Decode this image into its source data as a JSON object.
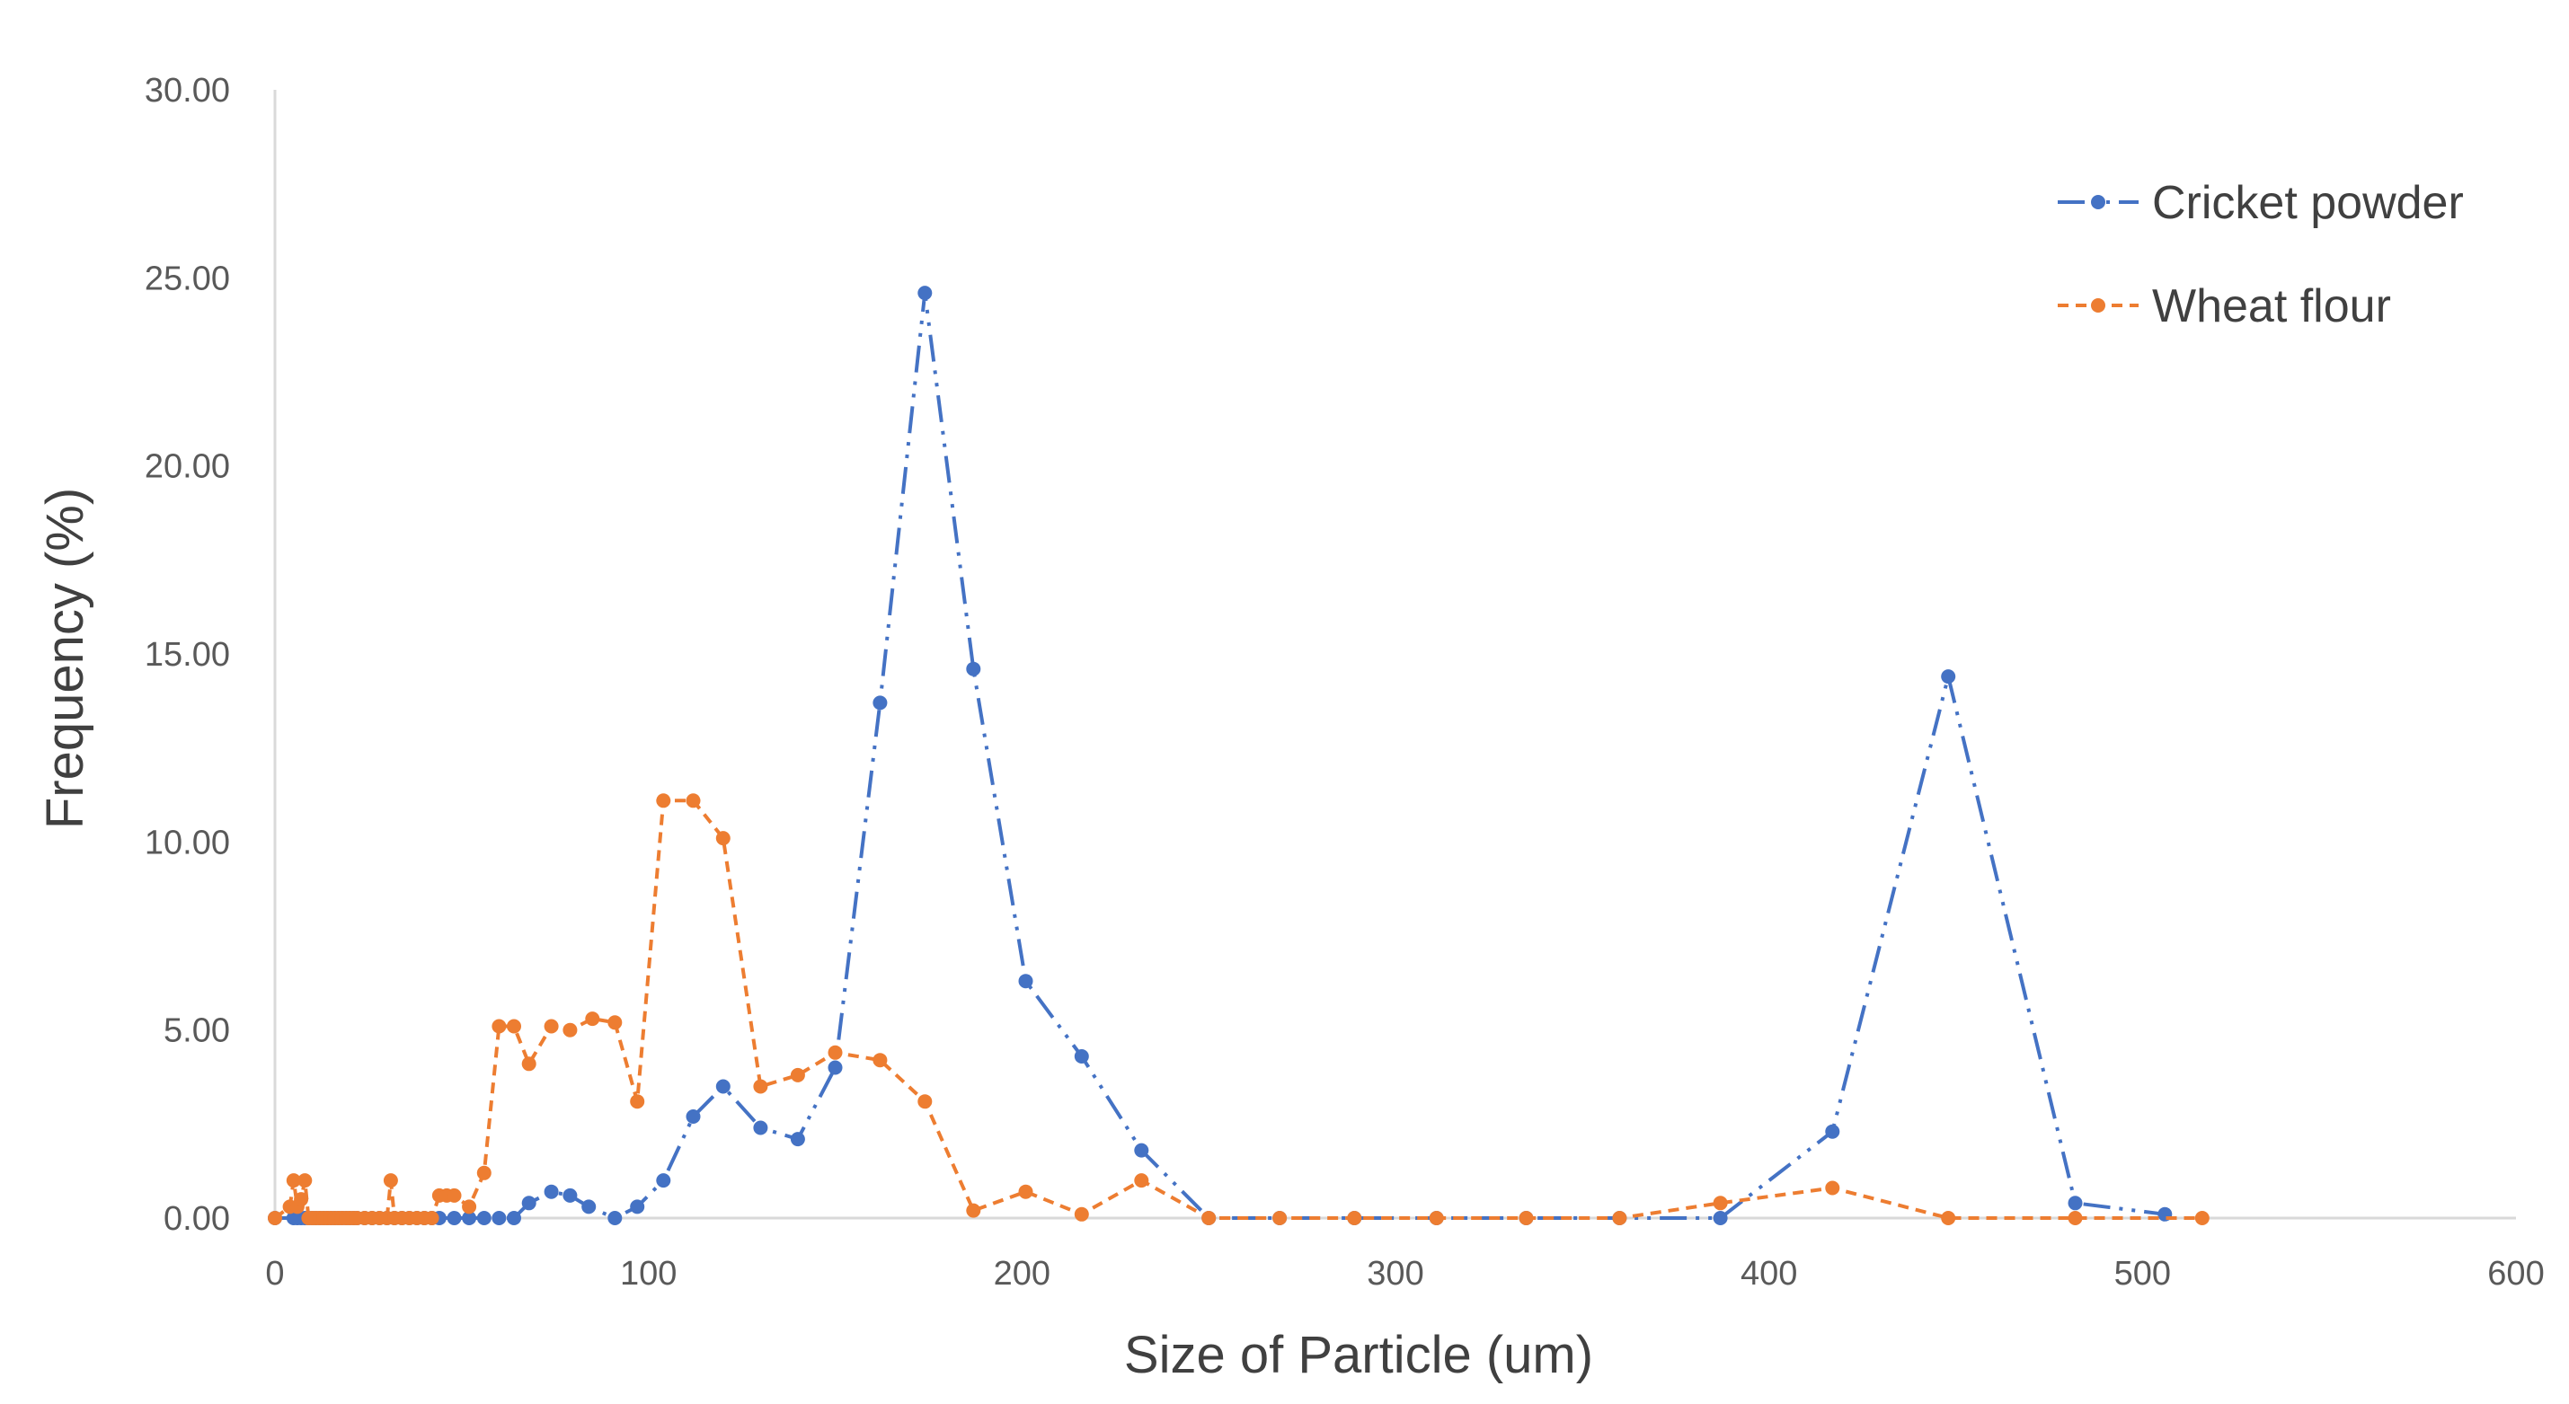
{
  "chart_data": {
    "type": "line",
    "title": "",
    "xlabel": "Size of Particle (um)",
    "ylabel": "Frequency (%)",
    "xlim": [
      0,
      600
    ],
    "ylim": [
      0,
      30
    ],
    "xticks": [
      "0",
      "100",
      "200",
      "300",
      "400",
      "500",
      "600"
    ],
    "yticks": [
      "0.00",
      "5.00",
      "10.00",
      "15.00",
      "20.00",
      "25.00",
      "30.00"
    ],
    "grid": false,
    "legend_position": "top-right",
    "series": [
      {
        "name": "Cricket powder",
        "color": "#4472C4",
        "line_style": "dash-dot-dot",
        "x": [
          0,
          5,
          6,
          7,
          8,
          9,
          10,
          11,
          12,
          13,
          14,
          15,
          16,
          17,
          18,
          19,
          20,
          21,
          22,
          24,
          26,
          28,
          30,
          32,
          34,
          36,
          38,
          40,
          42,
          44,
          48,
          52,
          56,
          60,
          64,
          68,
          74,
          79,
          84,
          91,
          97,
          104,
          112,
          120,
          130,
          140,
          150,
          162,
          174,
          187,
          201,
          216,
          232,
          250,
          269,
          289,
          311,
          335,
          360,
          387,
          417,
          448,
          482,
          506
        ],
        "y": [
          0,
          0,
          0,
          0,
          0,
          0,
          0,
          0,
          0,
          0,
          0,
          0,
          0,
          0,
          0,
          0,
          0,
          0,
          0,
          0,
          0,
          0,
          0,
          0,
          0,
          0,
          0,
          0,
          0,
          0,
          0,
          0,
          0,
          0,
          0,
          0.4,
          0.7,
          0.6,
          0.3,
          0,
          0.3,
          1.0,
          2.7,
          3.5,
          2.4,
          2.1,
          4.0,
          13.7,
          24.6,
          14.6,
          6.3,
          4.3,
          1.8,
          0,
          0,
          0,
          0,
          0,
          0,
          0,
          2.3,
          14.4,
          0.4,
          0.1
        ]
      },
      {
        "name": "Wheat flour",
        "color": "#ED7D31",
        "line_style": "dashed",
        "x": [
          0,
          4,
          5,
          6,
          7,
          8,
          9,
          10,
          11,
          12,
          13,
          14,
          15,
          16,
          17,
          18,
          19,
          20,
          21,
          22,
          24,
          26,
          28,
          30,
          31,
          32,
          34,
          36,
          38,
          40,
          42,
          44,
          46,
          48,
          52,
          56,
          60,
          64,
          68,
          74,
          79,
          85,
          91,
          97,
          104,
          112,
          120,
          130,
          140,
          150,
          162,
          174,
          187,
          201,
          216,
          232,
          250,
          269,
          289,
          311,
          335,
          360,
          387,
          417,
          448,
          482,
          516
        ],
        "y": [
          0,
          0.3,
          1.0,
          0.3,
          0.5,
          1.0,
          0,
          0,
          0,
          0,
          0,
          0,
          0,
          0,
          0,
          0,
          0,
          0,
          0,
          0,
          0,
          0,
          0,
          0,
          1.0,
          0,
          0,
          0,
          0,
          0,
          0,
          0.6,
          0.6,
          0.6,
          0.3,
          1.2,
          5.1,
          5.1,
          4.1,
          5.1,
          5.0,
          5.3,
          5.2,
          3.1,
          11.1,
          11.1,
          10.1,
          3.5,
          3.8,
          4.4,
          4.2,
          3.1,
          0.2,
          0.7,
          0.1,
          1.0,
          0,
          0,
          0,
          0,
          0,
          0,
          0.4,
          0.8,
          0,
          0,
          0
        ]
      }
    ]
  }
}
